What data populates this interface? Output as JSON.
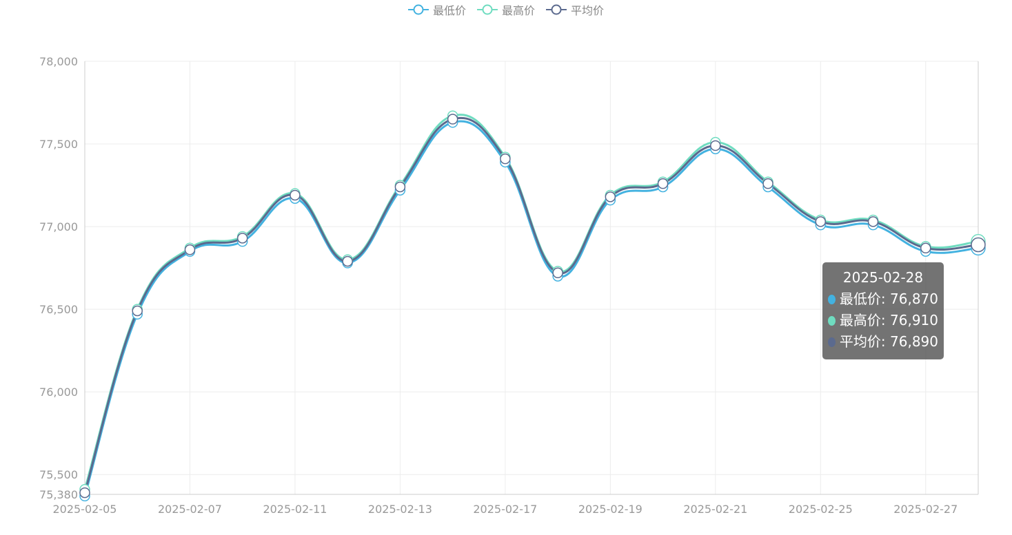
{
  "legend": [
    {
      "name": "最低价",
      "color": "#43b2e0"
    },
    {
      "name": "最高价",
      "color": "#6fdcc0"
    },
    {
      "name": "平均价",
      "color": "#5b6a8e"
    }
  ],
  "tooltip": {
    "date": "2025-02-28",
    "rows": [
      {
        "label": "最低价: 76,870",
        "color": "#43b2e0"
      },
      {
        "label": "最高价: 76,910",
        "color": "#6fdcc0"
      },
      {
        "label": "平均价: 76,890",
        "color": "#5b6a8e"
      }
    ]
  },
  "chart_data": {
    "type": "line",
    "x": [
      "2025-02-05",
      "2025-02-06",
      "2025-02-07",
      "2025-02-10",
      "2025-02-11",
      "2025-02-12",
      "2025-02-13",
      "2025-02-14",
      "2025-02-17",
      "2025-02-18",
      "2025-02-19",
      "2025-02-20",
      "2025-02-21",
      "2025-02-24",
      "2025-02-25",
      "2025-02-26",
      "2025-02-27",
      "2025-02-28"
    ],
    "x_tick_labels": [
      "2025-02-05",
      "2025-02-07",
      "2025-02-11",
      "2025-02-13",
      "2025-02-17",
      "2025-02-19",
      "2025-02-21",
      "2025-02-25",
      "2025-02-27"
    ],
    "y_tick_labels": [
      "78,000",
      "77,500",
      "77,000",
      "76,500",
      "76,000",
      "75,500",
      "75,380"
    ],
    "y_ticks": [
      78000,
      77500,
      77000,
      76500,
      76000,
      75500,
      75380
    ],
    "ylim": [
      75380,
      78000
    ],
    "grid": true,
    "legend_position": "top-center",
    "series": [
      {
        "name": "最低价",
        "color": "#43b2e0",
        "values": [
          75370,
          76470,
          76850,
          76910,
          77170,
          76780,
          77220,
          77630,
          77390,
          76700,
          77160,
          77240,
          77470,
          77240,
          77010,
          77010,
          76850,
          76870
        ]
      },
      {
        "name": "最高价",
        "color": "#6fdcc0",
        "values": [
          75410,
          76500,
          76870,
          76940,
          77200,
          76800,
          77250,
          77670,
          77420,
          76730,
          77190,
          77270,
          77510,
          77270,
          77040,
          77040,
          76880,
          76910
        ]
      },
      {
        "name": "平均价",
        "color": "#5b6a8e",
        "values": [
          75390,
          76490,
          76860,
          76930,
          77190,
          76790,
          77240,
          77650,
          77410,
          76720,
          77180,
          77260,
          77490,
          77260,
          77030,
          77030,
          76870,
          76890
        ]
      }
    ]
  }
}
